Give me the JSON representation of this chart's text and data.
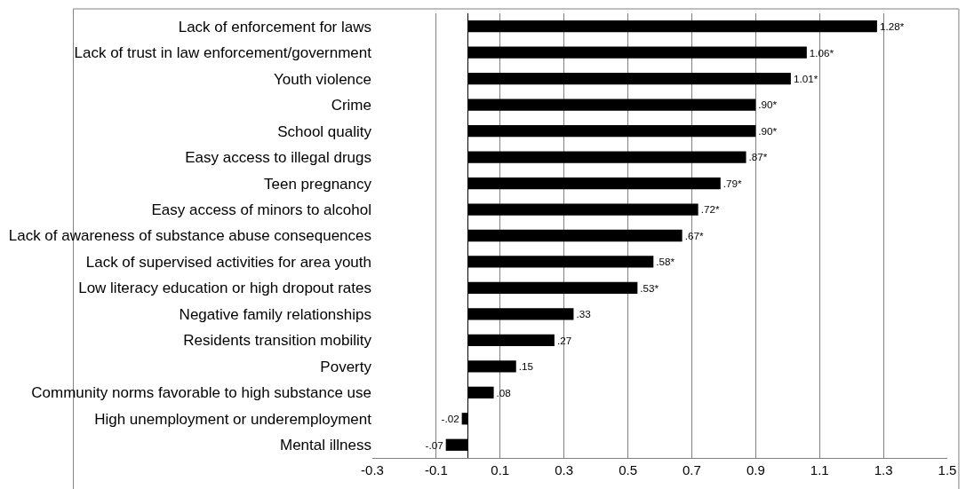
{
  "chart_data": {
    "type": "bar",
    "orientation": "horizontal",
    "categories": [
      "Lack of enforcement for laws",
      "Lack of trust in law enforcement/government",
      "Youth violence",
      "Crime",
      "School quality",
      "Easy access to illegal drugs",
      "Teen pregnancy",
      "Easy access of minors to alcohol",
      "Lack of awareness of substance abuse consequences",
      "Lack of supervised activities for area youth",
      "Low literacy education or high dropout rates",
      "Negative family relationships",
      "Residents transition mobility",
      "Poverty",
      "Community norms favorable to high substance use",
      "High unemployment or underemployment",
      "Mental illness"
    ],
    "values": [
      1.28,
      1.06,
      1.01,
      0.9,
      0.9,
      0.87,
      0.79,
      0.72,
      0.67,
      0.58,
      0.53,
      0.33,
      0.27,
      0.15,
      0.08,
      -0.02,
      -0.07
    ],
    "value_labels": [
      "1.28*",
      "1.06*",
      "1.01*",
      ".90*",
      ".90*",
      ".87*",
      ".79*",
      ".72*",
      ".67*",
      ".58*",
      ".53*",
      ".33",
      ".27",
      ".15",
      ".08",
      "-.02",
      "-.07"
    ],
    "color": "#000000",
    "xlim": [
      -0.3,
      1.5
    ],
    "xticks": [
      -0.3,
      -0.1,
      0.1,
      0.3,
      0.5,
      0.7,
      0.9,
      1.1,
      1.3,
      1.5
    ],
    "grid": "x"
  }
}
